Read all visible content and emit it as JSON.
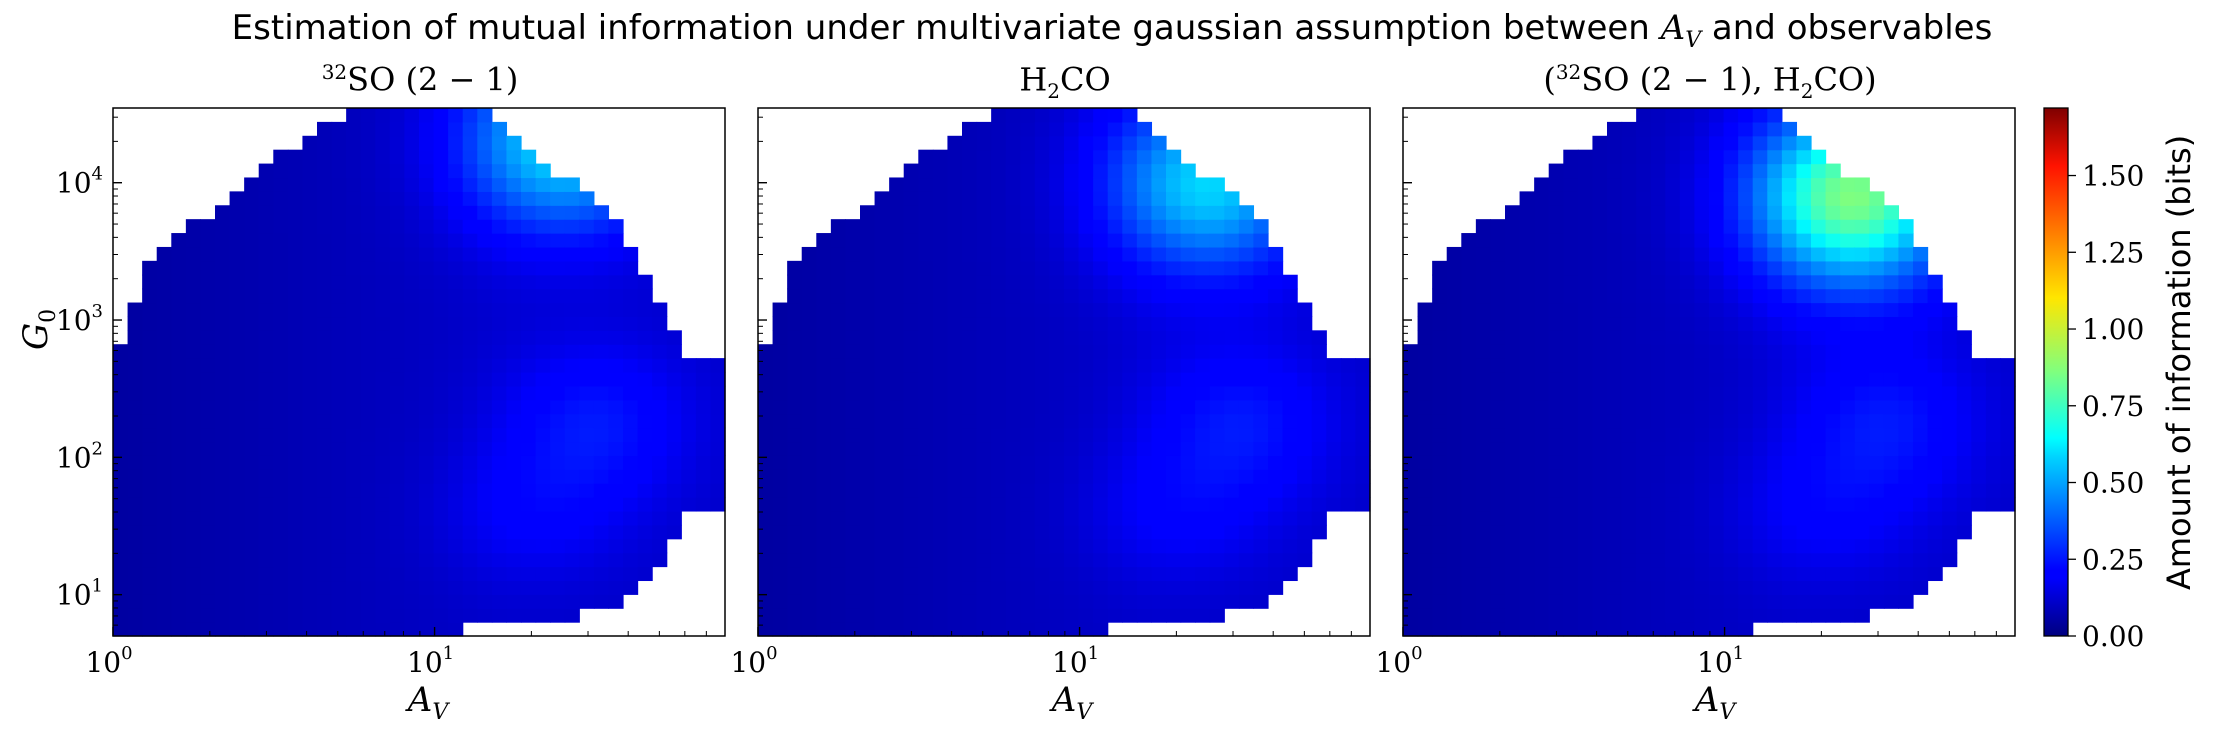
{
  "figure": {
    "title_prefix": "Estimation of mutual information under multivariate gaussian assumption between ",
    "title_var": "A",
    "title_var_sub": "V",
    "title_suffix": " and observables"
  },
  "panels": [
    {
      "title_parts": [
        "",
        "32",
        "SO (2 − 1)",
        "",
        ""
      ],
      "colormap_peak": "low"
    },
    {
      "title_parts": [
        "H",
        "",
        "",
        "2",
        "CO"
      ],
      "colormap_peak": "mid"
    },
    {
      "title_parts": [
        "(",
        "32",
        "SO (2 − 1), H",
        "2",
        "CO)"
      ],
      "colormap_peak": "high"
    }
  ],
  "axes": {
    "xlabel": "A",
    "xlabel_sub": "V",
    "ylabel": "G",
    "ylabel_sub": "0",
    "x_ticks": [
      {
        "base": "10",
        "exp": "0",
        "value": 1
      },
      {
        "base": "10",
        "exp": "1",
        "value": 10
      }
    ],
    "y_ticks": [
      {
        "base": "10",
        "exp": "1",
        "value": 10
      },
      {
        "base": "10",
        "exp": "2",
        "value": 100
      },
      {
        "base": "10",
        "exp": "3",
        "value": 1000
      },
      {
        "base": "10",
        "exp": "4",
        "value": 10000
      }
    ],
    "xlim": [
      1,
      80
    ],
    "ylim": [
      5,
      35000
    ],
    "x_scale": "log",
    "y_scale": "log"
  },
  "colorbar": {
    "label": "Amount of information (bits)",
    "ticks": [
      "0.00",
      "0.25",
      "0.50",
      "0.75",
      "1.00",
      "1.25",
      "1.50"
    ],
    "tick_values": [
      0,
      0.25,
      0.5,
      0.75,
      1.0,
      1.25,
      1.5
    ],
    "range": [
      0,
      1.72
    ],
    "colormap": "jet"
  },
  "chart_data": [
    {
      "type": "heatmap",
      "title": "32SO (2 − 1)",
      "xlabel": "A_V",
      "ylabel": "G_0",
      "x_scale": "log",
      "y_scale": "log",
      "xlim": [
        1,
        80
      ],
      "ylim": [
        5,
        35000
      ],
      "zlim": [
        0,
        1.72
      ],
      "peak_value": 0.6,
      "peak_at": {
        "x": 25,
        "y": 20000
      }
    },
    {
      "type": "heatmap",
      "title": "H2CO",
      "xlabel": "A_V",
      "ylabel": "G_0",
      "x_scale": "log",
      "y_scale": "log",
      "xlim": [
        1,
        80
      ],
      "ylim": [
        5,
        35000
      ],
      "zlim": [
        0,
        1.72
      ],
      "peak_value": 0.58,
      "peak_at": {
        "x": 25,
        "y": 10000
      }
    },
    {
      "type": "heatmap",
      "title": "(32SO (2 − 1), H2CO)",
      "xlabel": "A_V",
      "ylabel": "G_0",
      "x_scale": "log",
      "y_scale": "log",
      "xlim": [
        1,
        80
      ],
      "ylim": [
        5,
        35000
      ],
      "zlim": [
        0,
        1.72
      ],
      "peak_value": 0.85,
      "peak_at": {
        "x": 25,
        "y": 8000
      }
    }
  ]
}
